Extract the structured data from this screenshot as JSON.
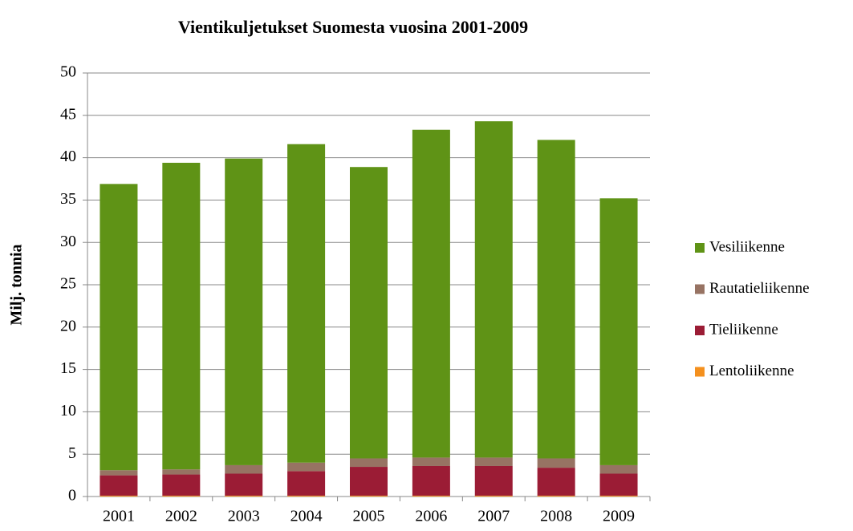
{
  "chart_data": {
    "type": "stacked_bar",
    "title": "Vientikuljetukset Suomesta vuosina 2001-2009",
    "y_label": "Milj. tonnia",
    "categories": [
      "2001",
      "2002",
      "2003",
      "2004",
      "2005",
      "2006",
      "2007",
      "2008",
      "2009"
    ],
    "series": [
      {
        "name": "Lentoliikenne",
        "color": "#f4901e",
        "values": [
          0.1,
          0.1,
          0.1,
          0.1,
          0.1,
          0.1,
          0.1,
          0.1,
          0.1
        ]
      },
      {
        "name": "Tieliikenne",
        "color": "#9b1c35",
        "values": [
          2.4,
          2.5,
          2.6,
          2.9,
          3.4,
          3.5,
          3.5,
          3.3,
          2.6
        ]
      },
      {
        "name": "Rautatieliikenne",
        "color": "#977363",
        "values": [
          0.6,
          0.6,
          1.0,
          1.0,
          1.0,
          1.0,
          1.0,
          1.1,
          1.0
        ]
      },
      {
        "name": "Vesiliikenne",
        "color": "#5f9316",
        "values": [
          33.8,
          36.2,
          36.2,
          37.6,
          34.4,
          38.7,
          39.7,
          37.6,
          31.5
        ]
      }
    ],
    "ylim": [
      0,
      50
    ],
    "yticks": [
      0,
      5,
      10,
      15,
      20,
      25,
      30,
      35,
      40,
      45,
      50
    ],
    "grid": true,
    "legend": "right"
  }
}
